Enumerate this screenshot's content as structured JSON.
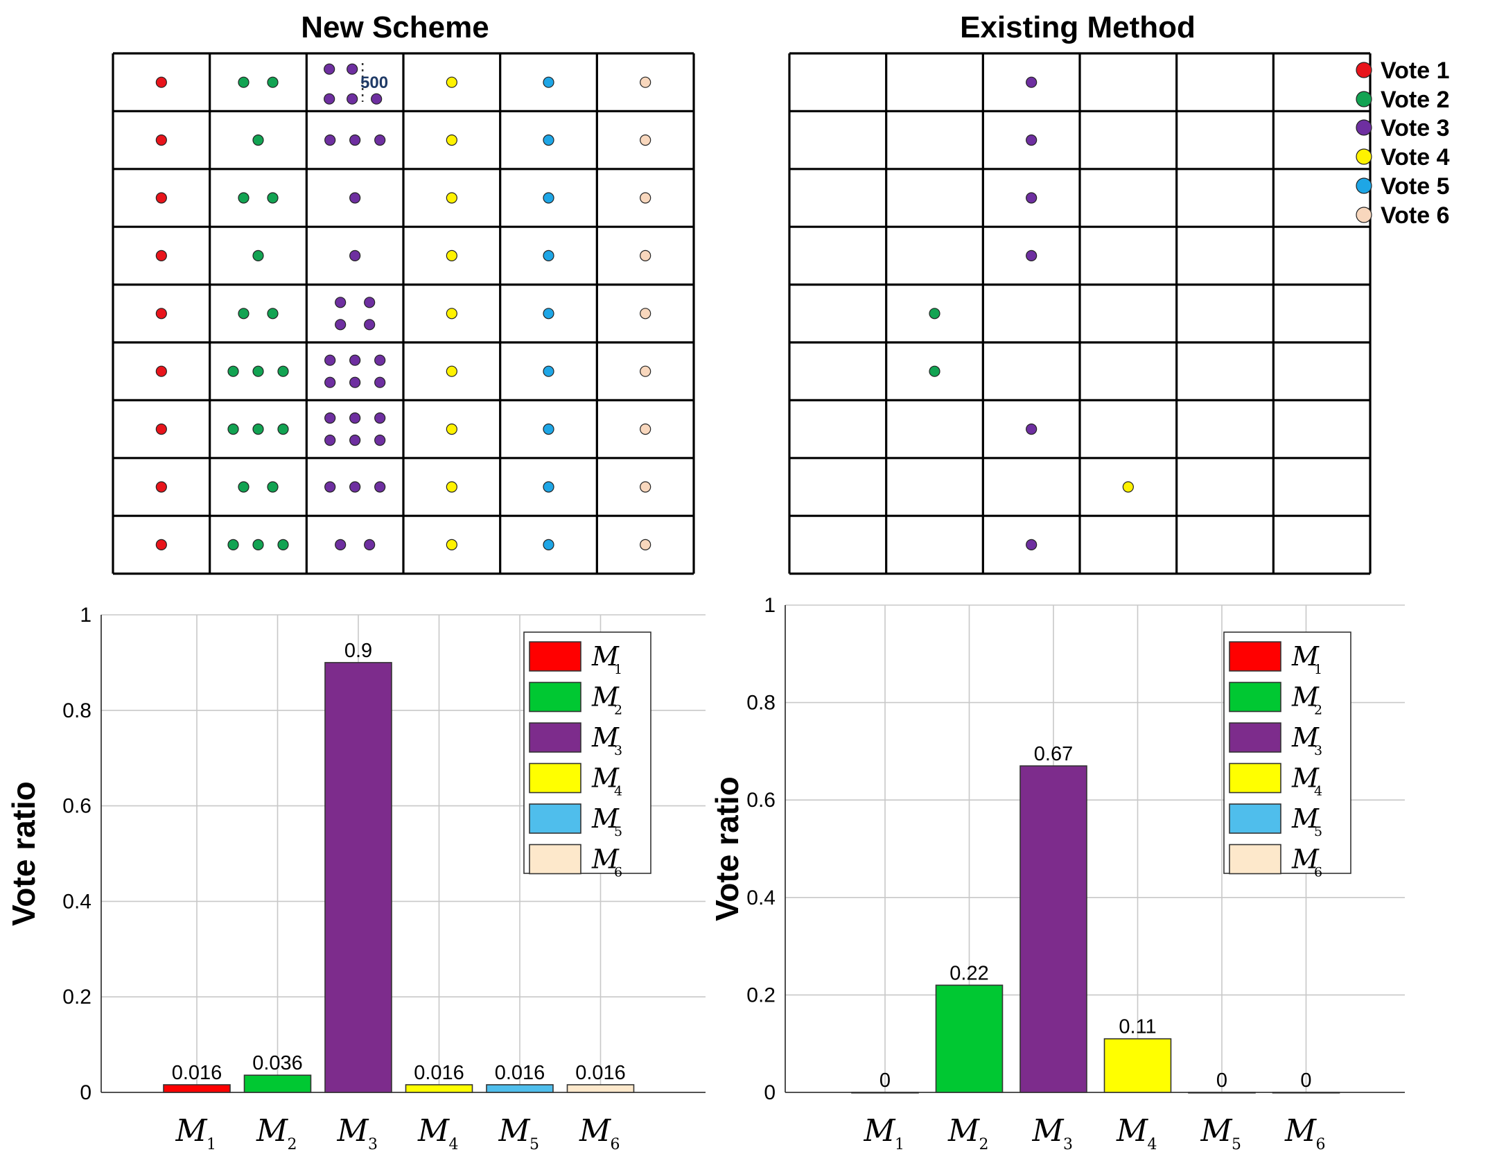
{
  "panels": {
    "top_left_title": "New Scheme",
    "top_right_title": "Existing Method",
    "annotation": "500"
  },
  "vote_legend": [
    {
      "label": "Vote 1",
      "color": "#e8141b"
    },
    {
      "label": "Vote 2",
      "color": "#12a352"
    },
    {
      "label": "Vote 3",
      "color": "#6e2fa0"
    },
    {
      "label": "Vote 4",
      "color": "#fff200"
    },
    {
      "label": "Vote 5",
      "color": "#1ea6e6"
    },
    {
      "label": "Vote 6",
      "color": "#f8d7bd"
    }
  ],
  "grids": {
    "new_scheme_counts": [
      [
        1,
        2,
        5,
        1,
        1,
        1
      ],
      [
        1,
        1,
        3,
        1,
        1,
        1
      ],
      [
        1,
        2,
        1,
        1,
        1,
        1
      ],
      [
        1,
        1,
        1,
        1,
        1,
        1
      ],
      [
        1,
        2,
        4,
        1,
        1,
        1
      ],
      [
        1,
        3,
        6,
        1,
        1,
        1
      ],
      [
        1,
        3,
        6,
        1,
        1,
        1
      ],
      [
        1,
        2,
        3,
        1,
        1,
        1
      ],
      [
        1,
        3,
        2,
        1,
        1,
        1
      ]
    ],
    "existing_method_votes": [
      3,
      3,
      3,
      3,
      2,
      2,
      3,
      4,
      3
    ]
  },
  "chart_data": [
    {
      "type": "bar",
      "categories": [
        "M1",
        "M2",
        "M3",
        "M4",
        "M5",
        "M6"
      ],
      "values": [
        0.016,
        0.036,
        0.9,
        0.016,
        0.016,
        0.016
      ],
      "value_labels": [
        "0.016",
        "0.036",
        "0.9",
        "0.016",
        "0.016",
        "0.016"
      ],
      "title": "",
      "xlabel": "",
      "ylabel": "Vote ratio",
      "ylim": [
        0,
        1
      ],
      "yticks": [
        "0",
        "0.2",
        "0.4",
        "0.6",
        "0.8",
        "1"
      ],
      "grid": true,
      "legend": [
        "M1",
        "M2",
        "M3",
        "M4",
        "M5",
        "M6"
      ],
      "legend_position": "top-right",
      "colors": [
        "#ff0000",
        "#00c832",
        "#7d2c8c",
        "#ffff00",
        "#4fbeec",
        "#fde8cb"
      ]
    },
    {
      "type": "bar",
      "categories": [
        "M1",
        "M2",
        "M3",
        "M4",
        "M5",
        "M6"
      ],
      "values": [
        0,
        0.22,
        0.67,
        0.11,
        0,
        0
      ],
      "value_labels": [
        "0",
        "0.22",
        "0.67",
        "0.11",
        "0",
        "0"
      ],
      "title": "",
      "xlabel": "",
      "ylabel": "Vote ratio",
      "ylim": [
        0,
        1
      ],
      "yticks": [
        "0",
        "0.2",
        "0.4",
        "0.6",
        "0.8",
        "1"
      ],
      "grid": true,
      "legend": [
        "M1",
        "M2",
        "M3",
        "M4",
        "M5",
        "M6"
      ],
      "legend_position": "top-right",
      "colors": [
        "#ff0000",
        "#00c832",
        "#7d2c8c",
        "#ffff00",
        "#4fbeec",
        "#fde8cb"
      ]
    }
  ]
}
